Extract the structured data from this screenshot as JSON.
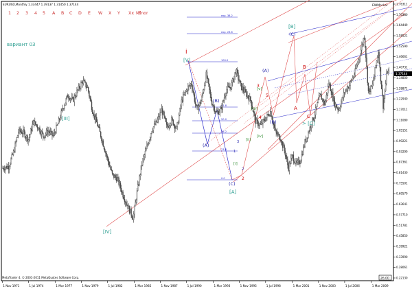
{
  "window": {
    "symbol_line": "EURUSD,Monthly  1.33447 1.39137 1.31450 1.37144",
    "wave_menu": [
      "1",
      "2",
      "3",
      "4",
      "5",
      "A",
      "B",
      "C",
      "D",
      "E",
      "W",
      "X",
      "Y",
      "Xx",
      "Z",
      "Minor"
    ],
    "variant_label": "вариант 03",
    "marker_label": "EWMarker",
    "copyright": "MetaTrader 4, © 2001-2011 MetaQuotes Software Corp.",
    "price_box": "26.00"
  },
  "chart_data": {
    "type": "candlestick",
    "title": "EURUSD,Monthly",
    "xlabel": "",
    "ylabel": "",
    "x_ticks": [
      "1 Nov 1971",
      "1 Jul 1974",
      "1 Mar 1977",
      "1 Nov 1979",
      "1 Jul 1982",
      "1 Mar 1985",
      "1 Nov 1987",
      "1 Jul 1990",
      "1 Mar 1993",
      "1 Nov 1995",
      "1 Jul 1998",
      "1 Mar 2001",
      "1 Nov 2003",
      "1 Jul 2006",
      "1 Mar 2009"
    ],
    "y_ticks": [
      "1.76311",
      "1.70380",
      "1.64449",
      "1.58521",
      "1.52590",
      "1.46661",
      "1.40731",
      "1.34800",
      "1.28871",
      "1.22940",
      "1.17011",
      "1.11080",
      "1.05151",
      "0.99221",
      "0.93290",
      "0.87361",
      "0.81430",
      "0.75501",
      "0.69570",
      "0.63641",
      "0.57710",
      "0.51781",
      "0.45850",
      "0.39921",
      "0.33990",
      "0.28061",
      "0.22130"
    ],
    "current_price": "1.37144",
    "ylim": [
      0.2213,
      1.7631
    ],
    "price_path": [
      [
        1971.9,
        0.84
      ],
      [
        1972.5,
        0.85
      ],
      [
        1973.0,
        0.93
      ],
      [
        1973.5,
        1.05
      ],
      [
        1974.0,
        1.04
      ],
      [
        1974.5,
        1.0
      ],
      [
        1975.0,
        1.1
      ],
      [
        1975.5,
        1.07
      ],
      [
        1976.0,
        1.02
      ],
      [
        1976.5,
        1.05
      ],
      [
        1977.0,
        1.02
      ],
      [
        1977.5,
        1.09
      ],
      [
        1978.0,
        1.18
      ],
      [
        1978.5,
        1.25
      ],
      [
        1979.0,
        1.22
      ],
      [
        1979.5,
        1.28
      ],
      [
        1980.0,
        1.33
      ],
      [
        1980.5,
        1.29
      ],
      [
        1981.0,
        1.16
      ],
      [
        1981.5,
        1.08
      ],
      [
        1982.0,
        0.99
      ],
      [
        1982.5,
        0.89
      ],
      [
        1983.0,
        0.8
      ],
      [
        1983.5,
        0.78
      ],
      [
        1984.0,
        0.7
      ],
      [
        1984.5,
        0.63
      ],
      [
        1985.1,
        0.56
      ],
      [
        1985.5,
        0.71
      ],
      [
        1986.0,
        0.87
      ],
      [
        1986.5,
        0.96
      ],
      [
        1987.0,
        1.06
      ],
      [
        1987.5,
        1.1
      ],
      [
        1988.0,
        1.17
      ],
      [
        1988.5,
        1.07
      ],
      [
        1989.0,
        1.11
      ],
      [
        1989.5,
        1.06
      ],
      [
        1990.0,
        1.22
      ],
      [
        1990.5,
        1.28
      ],
      [
        1991.0,
        1.32
      ],
      [
        1991.5,
        1.17
      ],
      [
        1992.0,
        1.22
      ],
      [
        1992.5,
        1.37
      ],
      [
        1993.0,
        1.22
      ],
      [
        1993.5,
        1.15
      ],
      [
        1994.0,
        1.17
      ],
      [
        1994.5,
        1.28
      ],
      [
        1995.0,
        1.3
      ],
      [
        1995.5,
        1.39
      ],
      [
        1996.0,
        1.3
      ],
      [
        1996.5,
        1.26
      ],
      [
        1997.0,
        1.22
      ],
      [
        1997.5,
        1.1
      ],
      [
        1998.0,
        1.08
      ],
      [
        1998.5,
        1.12
      ],
      [
        1999.0,
        1.16
      ],
      [
        1999.5,
        1.04
      ],
      [
        2000.0,
        1.01
      ],
      [
        2000.5,
        0.92
      ],
      [
        2000.8,
        0.84
      ],
      [
        2001.2,
        0.91
      ],
      [
        2001.6,
        0.86
      ],
      [
        2002.0,
        0.88
      ],
      [
        2002.5,
        0.99
      ],
      [
        2003.0,
        1.07
      ],
      [
        2003.5,
        1.15
      ],
      [
        2004.0,
        1.25
      ],
      [
        2004.5,
        1.2
      ],
      [
        2004.9,
        1.32
      ],
      [
        2005.5,
        1.2
      ],
      [
        2005.9,
        1.17
      ],
      [
        2006.5,
        1.27
      ],
      [
        2007.0,
        1.31
      ],
      [
        2007.5,
        1.37
      ],
      [
        2008.0,
        1.47
      ],
      [
        2008.5,
        1.59
      ],
      [
        2008.9,
        1.27
      ],
      [
        2009.3,
        1.3
      ],
      [
        2009.9,
        1.5
      ],
      [
        2010.4,
        1.19
      ],
      [
        2010.8,
        1.39
      ],
      [
        2011.0,
        1.37
      ]
    ]
  },
  "annotations": {
    "wave_labels": [
      {
        "text": "[III]",
        "color": "#2a9d8f"
      },
      {
        "text": "[IV]",
        "color": "#2a9d8f"
      },
      {
        "text": "[V]",
        "color": "#2a9d8f"
      },
      {
        "text": "i",
        "color": "#cc0000"
      },
      {
        "text": "(A)",
        "color": "#2222aa"
      },
      {
        "text": "(B)",
        "color": "#2222aa"
      },
      {
        "text": "(C)",
        "color": "#2222aa"
      },
      {
        "text": "[A]",
        "color": "#2a9d8f"
      },
      {
        "text": "[B]",
        "color": "#2a9d8f"
      },
      {
        "text": "(C)",
        "color": "#2222aa"
      },
      {
        "text": "(A)",
        "color": "#2222aa"
      },
      {
        "text": "(B)",
        "color": "#2222aa"
      },
      {
        "text": "A",
        "color": "#cc0000"
      },
      {
        "text": "B",
        "color": "#cc0000"
      },
      {
        "text": "C",
        "color": "#cc0000"
      },
      {
        "text": "> [C]",
        "color": "#2a9d8f"
      },
      {
        "text": "2",
        "color": "#cc0000"
      },
      {
        "text": "3",
        "color": "#cc0000"
      },
      {
        "text": "4",
        "color": "#cc0000"
      },
      {
        "text": "5",
        "color": "#cc0000"
      },
      {
        "text": "[i]",
        "color": "#2e8b2e"
      },
      {
        "text": "[ii]",
        "color": "#2e8b2e"
      },
      {
        "text": "[iii]",
        "color": "#2e8b2e"
      },
      {
        "text": "[iv]",
        "color": "#2e8b2e"
      },
      {
        "text": "[v]",
        "color": "#2e8b2e"
      },
      {
        "text": "1",
        "color": "#2222aa"
      },
      {
        "text": "2",
        "color": "#2222aa"
      },
      {
        "text": "3",
        "color": "#2222aa"
      }
    ],
    "fib_levels": [
      "exp. 38.2",
      "exp. 23.6",
      "100.0",
      "61.8",
      "50.0",
      "38.2",
      "23.6",
      "0.0"
    ],
    "colors": {
      "fib": "#2222cc",
      "channel_red": "#e05050",
      "channel_blue": "#3333cc",
      "candles": "#555555"
    }
  }
}
